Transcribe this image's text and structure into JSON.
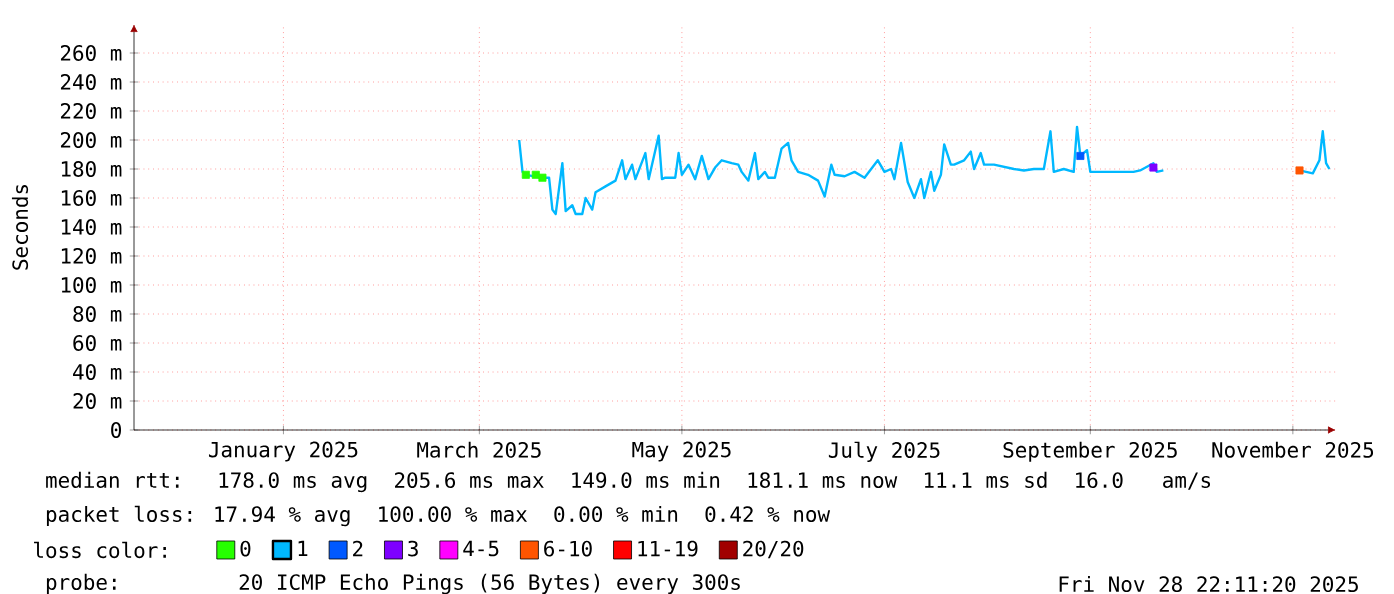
{
  "chart_data": {
    "type": "line",
    "ylabel": "Seconds",
    "xlim": [
      "2024-12-01",
      "2025-11-28"
    ],
    "xticks": [
      {
        "value": "2025-01-15",
        "label": "January 2025"
      },
      {
        "value": "2025-03-15",
        "label": "March 2025"
      },
      {
        "value": "2025-05-15",
        "label": "May 2025"
      },
      {
        "value": "2025-07-15",
        "label": "July 2025"
      },
      {
        "value": "2025-09-15",
        "label": "September 2025"
      },
      {
        "value": "2025-11-15",
        "label": "November 2025"
      }
    ],
    "ylim": [
      0,
      280
    ],
    "yticks": [
      0,
      {
        "value": 20,
        "label": "20 m"
      },
      {
        "value": 40,
        "label": "40 m"
      },
      {
        "value": 60,
        "label": "60 m"
      },
      {
        "value": 80,
        "label": "80 m"
      },
      {
        "value": 100,
        "label": "100 m"
      },
      {
        "value": 120,
        "label": "120 m"
      },
      {
        "value": 140,
        "label": "140 m"
      },
      {
        "value": 160,
        "label": "160 m"
      },
      {
        "value": 180,
        "label": "180 m"
      },
      {
        "value": 200,
        "label": "200 m"
      },
      {
        "value": 220,
        "label": "220 m"
      },
      {
        "value": 240,
        "label": "240 m"
      },
      {
        "value": 260,
        "label": "260 m"
      }
    ],
    "grid": true,
    "legend": "bottom",
    "legend_title": "loss color:",
    "series": [
      {
        "name": "0",
        "type": "scatter",
        "marker": "square",
        "color": "#26ff00",
        "x": [
          "2025-03-29",
          "2025-04-01",
          "2025-04-03"
        ],
        "values": [
          176,
          176,
          174
        ]
      },
      {
        "name": "1",
        "type": "line",
        "color": "#00b8ff",
        "x": [
          "2025-03-27",
          "2025-03-28",
          "2025-03-29",
          "2025-04-03",
          "2025-04-05",
          "2025-04-06",
          "2025-04-07",
          "2025-04-09",
          "2025-04-10",
          "2025-04-12",
          "2025-04-13",
          "2025-04-15",
          "2025-04-16",
          "2025-04-18",
          "2025-04-19",
          "2025-04-22",
          "2025-04-25",
          "2025-04-27",
          "2025-04-28",
          "2025-04-30",
          "2025-05-01",
          "2025-05-04",
          "2025-05-05",
          "2025-05-08",
          "2025-05-09",
          "2025-05-10",
          "2025-05-13",
          "2025-05-14",
          "2025-05-15",
          "2025-05-17",
          "2025-05-19",
          "2025-05-21",
          "2025-05-23",
          "2025-05-25",
          "2025-05-27",
          "2025-05-30",
          "2025-06-01",
          "2025-06-02",
          "2025-06-04",
          "2025-06-06",
          "2025-06-07",
          "2025-06-09",
          "2025-06-10",
          "2025-06-12",
          "2025-06-14",
          "2025-06-16",
          "2025-06-17",
          "2025-06-19",
          "2025-06-22",
          "2025-06-25",
          "2025-06-27",
          "2025-06-29",
          "2025-06-30",
          "2025-07-03",
          "2025-07-06",
          "2025-07-09",
          "2025-07-11",
          "2025-07-13",
          "2025-07-15",
          "2025-07-17",
          "2025-07-18",
          "2025-07-20",
          "2025-07-22",
          "2025-07-24",
          "2025-07-26",
          "2025-07-27",
          "2025-07-29",
          "2025-07-30",
          "2025-08-01",
          "2025-08-02",
          "2025-08-04",
          "2025-08-05",
          "2025-08-08",
          "2025-08-10",
          "2025-08-11",
          "2025-08-13",
          "2025-08-14",
          "2025-08-17",
          "2025-08-23",
          "2025-08-26",
          "2025-08-29",
          "2025-09-01",
          "2025-09-03",
          "2025-09-04",
          "2025-09-07",
          "2025-09-10",
          "2025-09-11",
          "2025-09-12",
          "2025-09-14",
          "2025-09-15",
          "2025-09-20",
          "2025-09-24",
          "2025-09-28",
          "2025-09-30",
          "2025-10-04",
          "2025-10-05",
          "2025-10-07",
          "2025-10-25",
          "2025-11-17",
          "2025-11-21",
          "2025-11-23",
          "2025-11-24",
          "2025-11-25",
          "2025-11-26"
        ],
        "values": [
          200,
          178,
          176,
          174,
          174,
          152,
          149,
          184,
          151,
          155,
          149,
          149,
          160,
          152,
          164,
          168,
          172,
          186,
          173,
          183,
          173,
          191,
          173,
          203,
          173,
          174,
          174,
          191,
          176,
          183,
          173,
          189,
          173,
          181,
          186,
          184,
          183,
          178,
          172,
          191,
          173,
          178,
          174,
          174,
          194,
          198,
          186,
          178,
          176,
          172,
          161,
          183,
          176,
          175,
          178,
          174,
          180,
          186,
          178,
          180,
          173,
          198,
          171,
          160,
          173,
          160,
          178,
          165,
          176,
          197,
          183,
          183,
          186,
          192,
          180,
          191,
          183,
          183,
          180,
          179,
          180,
          180,
          206,
          178,
          180,
          178,
          209,
          189,
          193,
          178,
          178,
          178,
          178,
          179,
          184,
          178,
          179,
          null,
          179,
          177,
          186,
          206,
          184,
          180
        ]
      },
      {
        "name": "2",
        "type": "scatter",
        "marker": "square",
        "color": "#0059ff",
        "x": [
          "2025-09-12"
        ],
        "values": [
          189
        ]
      },
      {
        "name": "3",
        "type": "scatter",
        "marker": "square",
        "color": "#7e00ff",
        "x": [
          "2025-10-04"
        ],
        "values": [
          181
        ]
      },
      {
        "name": "4-5",
        "type": "scatter",
        "marker": "square",
        "color": "#ff00ff"
      },
      {
        "name": "6-10",
        "type": "scatter",
        "marker": "square",
        "color": "#ff5500",
        "x": [
          "2025-11-17"
        ],
        "values": [
          179
        ]
      },
      {
        "name": "11-19",
        "type": "scatter",
        "marker": "square",
        "color": "#ff0000"
      },
      {
        "name": "20/20",
        "type": "scatter",
        "marker": "square",
        "color": "#a10000"
      }
    ],
    "annotations": [
      "median rtt:  178.0 ms avg  205.6 ms max  149.0 ms min  181.1 ms now  11.1 ms sd  16.0   am/s",
      "packet loss: 17.94 % avg  100.00 % max  0.00 % min  0.42 % now",
      "probe:       20 ICMP Echo Pings (56 Bytes) every 300s",
      "Fri Nov 28 22:11:20 2025"
    ]
  }
}
